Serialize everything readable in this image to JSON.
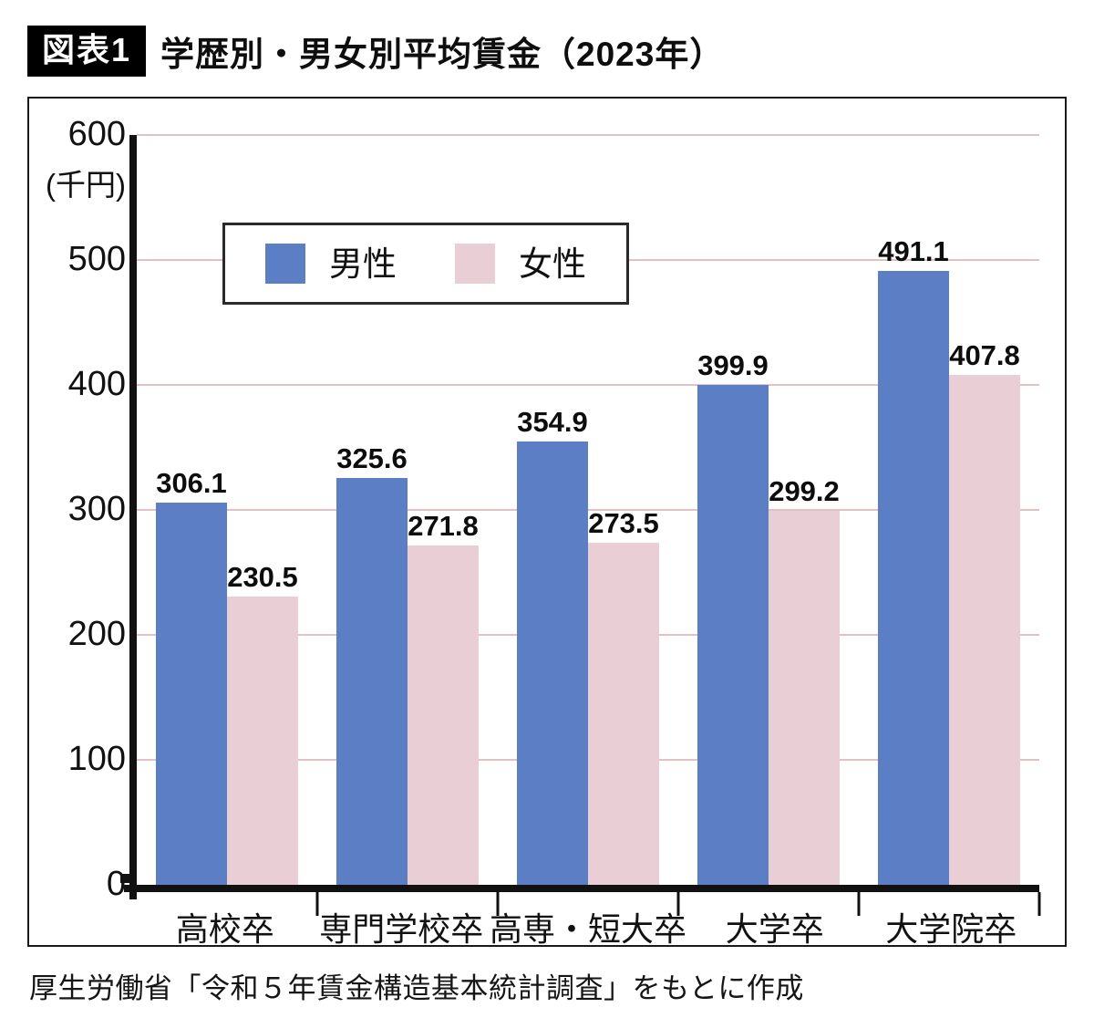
{
  "header": {
    "badge": "図表1",
    "title": "学歴別・男女別平均賃金（2023年）"
  },
  "source": "厚生労働省「令和５年賃金構造基本統計調査」をもとに作成",
  "colors": {
    "male": "#5b7ec4",
    "female": "#e9ced5",
    "gridline": "#e3c0c4",
    "axis": "#111111"
  },
  "chart_data": {
    "type": "bar",
    "title": "学歴別・男女別平均賃金（2023年）",
    "ylabel": "(千円)",
    "xlabel": "",
    "categories": [
      "高校卒",
      "専門学校卒",
      "高専・短大卒",
      "大学卒",
      "大学院卒"
    ],
    "series": [
      {
        "name": "男性",
        "color": "#5b7ec4",
        "values": [
          306.1,
          325.6,
          354.9,
          399.9,
          491.1
        ]
      },
      {
        "name": "女性",
        "color": "#e9ced5",
        "values": [
          230.5,
          271.8,
          273.5,
          299.2,
          407.8
        ]
      }
    ],
    "ylim": [
      0,
      600
    ],
    "yticks": [
      0,
      100,
      200,
      300,
      400,
      500,
      600
    ],
    "grid": true,
    "legend_position": "top-left-inside",
    "value_labels": true
  }
}
